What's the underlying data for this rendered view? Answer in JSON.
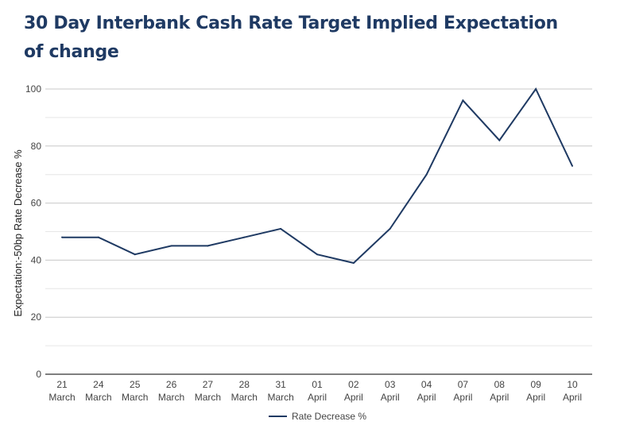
{
  "chart_data": {
    "type": "line",
    "title": "30 Day Interbank Cash Rate Target Implied Expectation of change",
    "xlabel": "",
    "ylabel": "Expectation:-50bp Rate Decrease %",
    "ylim": [
      0,
      100
    ],
    "yticks": [
      0,
      20,
      40,
      60,
      80,
      100
    ],
    "grid": true,
    "categories": [
      [
        "21",
        "March"
      ],
      [
        "24",
        "March"
      ],
      [
        "25",
        "March"
      ],
      [
        "26",
        "March"
      ],
      [
        "27",
        "March"
      ],
      [
        "28",
        "March"
      ],
      [
        "31",
        "March"
      ],
      [
        "01",
        "April"
      ],
      [
        "02",
        "April"
      ],
      [
        "03",
        "April"
      ],
      [
        "04",
        "April"
      ],
      [
        "07",
        "April"
      ],
      [
        "08",
        "April"
      ],
      [
        "09",
        "April"
      ],
      [
        "10",
        "April"
      ]
    ],
    "series": [
      {
        "name": "Rate Decrease %",
        "color": "#1f3a63",
        "values": [
          48,
          48,
          42,
          45,
          45,
          48,
          51,
          42,
          39,
          51,
          70,
          96,
          82,
          100,
          73
        ]
      }
    ],
    "legend_position": "bottom"
  }
}
